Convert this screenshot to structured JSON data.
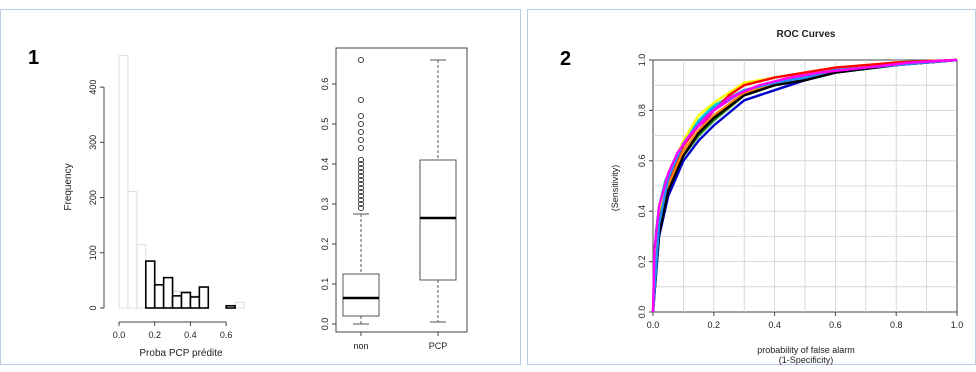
{
  "panels": [
    {
      "label": "1"
    },
    {
      "label": "2"
    }
  ],
  "chart_data": [
    {
      "type": "bar",
      "subtype": "histogram",
      "title": "",
      "xlabel": "Proba PCP prédite",
      "ylabel": "Frequency",
      "xlim": [
        0.0,
        0.7
      ],
      "ylim": [
        0,
        460
      ],
      "xticks": [
        "0.0",
        "0.2",
        "0.4",
        "0.6"
      ],
      "yticks": [
        "0",
        "100",
        "200",
        "300",
        "400"
      ],
      "bin_edges": [
        0.0,
        0.05,
        0.1,
        0.15,
        0.2,
        0.25,
        0.3,
        0.35,
        0.4,
        0.45,
        0.5,
        0.55,
        0.6,
        0.65,
        0.7
      ],
      "series": [
        {
          "values": [
            457,
            211,
            115,
            85,
            42,
            55,
            30,
            30,
            22,
            38,
            0,
            0,
            5,
            10
          ],
          "color": "#dddddd"
        },
        {
          "values": [
            0,
            0,
            0,
            85,
            42,
            55,
            22,
            28,
            20,
            38,
            0,
            0,
            4,
            0
          ],
          "color": "#000000"
        }
      ]
    },
    {
      "type": "box",
      "title": "",
      "categories": [
        "non",
        "PCP"
      ],
      "ylim": [
        0.0,
        0.66
      ],
      "yticks": [
        "0.0",
        "0.1",
        "0.2",
        "0.3",
        "0.4",
        "0.5",
        "0.6"
      ],
      "boxes": [
        {
          "category": "non",
          "whisker_low": 0.0,
          "q1": 0.02,
          "median": 0.065,
          "q3": 0.125,
          "whisker_high": 0.275,
          "outliers": [
            0.29,
            0.3,
            0.31,
            0.32,
            0.33,
            0.34,
            0.35,
            0.36,
            0.37,
            0.38,
            0.39,
            0.4,
            0.41,
            0.44,
            0.46,
            0.48,
            0.5,
            0.52,
            0.56,
            0.66
          ]
        },
        {
          "category": "PCP",
          "whisker_low": 0.005,
          "q1": 0.11,
          "median": 0.265,
          "q3": 0.41,
          "whisker_high": 0.66,
          "outliers": []
        }
      ]
    },
    {
      "type": "line",
      "title": "ROC Curves",
      "xlabel": "probability of false alarm",
      "xlabel2": "(1-Specificity)",
      "ylabel": "(Sensitivity)",
      "xlim": [
        0.0,
        1.0
      ],
      "ylim": [
        0.0,
        1.0
      ],
      "xticks": [
        "0.0",
        "0.2",
        "0.4",
        "0.6",
        "0.8",
        "1.0"
      ],
      "yticks": [
        "0.0",
        "0.2",
        "0.4",
        "0.6",
        "0.8",
        "1.0"
      ],
      "grid": true,
      "series": [
        {
          "color": "#ff00ff",
          "x": [
            0,
            0.01,
            0.02,
            0.04,
            0.06,
            0.1,
            0.15,
            0.2,
            0.3,
            0.4,
            0.5,
            0.6,
            0.7,
            0.8,
            0.9,
            1.0
          ],
          "y": [
            0,
            0.28,
            0.38,
            0.48,
            0.56,
            0.64,
            0.72,
            0.8,
            0.88,
            0.91,
            0.94,
            0.96,
            0.97,
            0.98,
            0.99,
            1.0
          ]
        },
        {
          "color": "#00cccc",
          "x": [
            0,
            0.01,
            0.02,
            0.04,
            0.07,
            0.1,
            0.15,
            0.2,
            0.3,
            0.4,
            0.5,
            0.6,
            0.8,
            1.0
          ],
          "y": [
            0,
            0.32,
            0.42,
            0.52,
            0.6,
            0.67,
            0.76,
            0.82,
            0.88,
            0.9,
            0.92,
            0.95,
            0.98,
            1.0
          ]
        },
        {
          "color": "#ffff00",
          "x": [
            0,
            0.02,
            0.05,
            0.1,
            0.15,
            0.2,
            0.25,
            0.3,
            0.4,
            0.5,
            0.6,
            0.8,
            1.0
          ],
          "y": [
            0,
            0.4,
            0.55,
            0.68,
            0.78,
            0.83,
            0.87,
            0.91,
            0.93,
            0.95,
            0.97,
            0.99,
            1.0
          ]
        },
        {
          "color": "#228b22",
          "x": [
            0,
            0.02,
            0.05,
            0.1,
            0.15,
            0.2,
            0.3,
            0.4,
            0.5,
            0.6,
            0.8,
            1.0
          ],
          "y": [
            0,
            0.34,
            0.5,
            0.62,
            0.7,
            0.76,
            0.86,
            0.9,
            0.92,
            0.95,
            0.98,
            1.0
          ]
        },
        {
          "color": "#ff0000",
          "x": [
            0,
            0.02,
            0.05,
            0.1,
            0.15,
            0.2,
            0.25,
            0.3,
            0.4,
            0.5,
            0.6,
            0.8,
            1.0
          ],
          "y": [
            0,
            0.36,
            0.52,
            0.66,
            0.74,
            0.8,
            0.86,
            0.9,
            0.93,
            0.95,
            0.97,
            0.99,
            1.0
          ]
        },
        {
          "color": "#0000cc",
          "x": [
            0,
            0.02,
            0.05,
            0.1,
            0.15,
            0.2,
            0.3,
            0.4,
            0.5,
            0.6,
            0.8,
            1.0
          ],
          "y": [
            0,
            0.3,
            0.46,
            0.6,
            0.68,
            0.74,
            0.84,
            0.88,
            0.92,
            0.95,
            0.98,
            1.0
          ]
        },
        {
          "color": "#ff8c00",
          "x": [
            0,
            0.02,
            0.05,
            0.1,
            0.15,
            0.2,
            0.3,
            0.4,
            0.5,
            0.6,
            0.8,
            1.0
          ],
          "y": [
            0,
            0.32,
            0.5,
            0.64,
            0.72,
            0.78,
            0.87,
            0.91,
            0.93,
            0.96,
            0.98,
            1.0
          ]
        },
        {
          "color": "#000000",
          "x": [
            0,
            0.02,
            0.05,
            0.1,
            0.15,
            0.2,
            0.3,
            0.4,
            0.5,
            0.6,
            0.8,
            1.0
          ],
          "y": [
            0,
            0.31,
            0.48,
            0.62,
            0.71,
            0.77,
            0.86,
            0.9,
            0.92,
            0.95,
            0.98,
            1.0
          ]
        },
        {
          "color": "#1e90ff",
          "x": [
            0,
            0.02,
            0.05,
            0.1,
            0.15,
            0.2,
            0.3,
            0.4,
            0.5,
            0.6,
            0.8,
            1.0
          ],
          "y": [
            0,
            0.35,
            0.53,
            0.67,
            0.75,
            0.81,
            0.88,
            0.91,
            0.93,
            0.96,
            0.98,
            1.0
          ]
        },
        {
          "color": "#ff00ff",
          "x": [
            0,
            0.005,
            0.02,
            0.05,
            0.08,
            0.12,
            0.18,
            0.25,
            0.35,
            0.45,
            0.55,
            0.7,
            0.85,
            1.0
          ],
          "y": [
            0,
            0.25,
            0.42,
            0.55,
            0.63,
            0.7,
            0.78,
            0.85,
            0.9,
            0.93,
            0.95,
            0.97,
            0.99,
            1.0
          ]
        }
      ]
    }
  ]
}
